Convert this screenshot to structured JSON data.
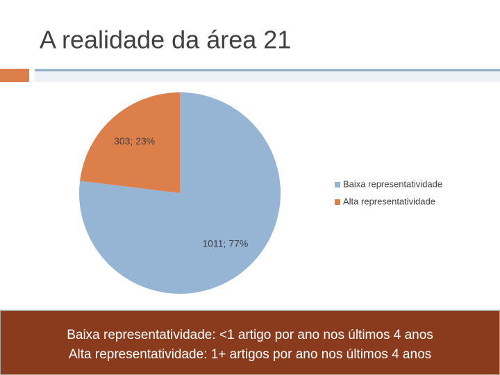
{
  "chart_data": {
    "type": "pie",
    "title": "A realidade da área 21",
    "categories": [
      "Baixa representatividade",
      "Alta representatividade"
    ],
    "values": [
      1011,
      303
    ],
    "value_labels": [
      "1011; 77%",
      "303; 23%"
    ],
    "colors": [
      "#96b5d5",
      "#dd7f4b"
    ],
    "legend": "right",
    "annotations": [
      "Baixa representatividade:  <1 artigo por ano nos últimos 4 anos",
      "Alta representatividade: 1+ artigos por ano nos últimos 4 anos"
    ]
  }
}
